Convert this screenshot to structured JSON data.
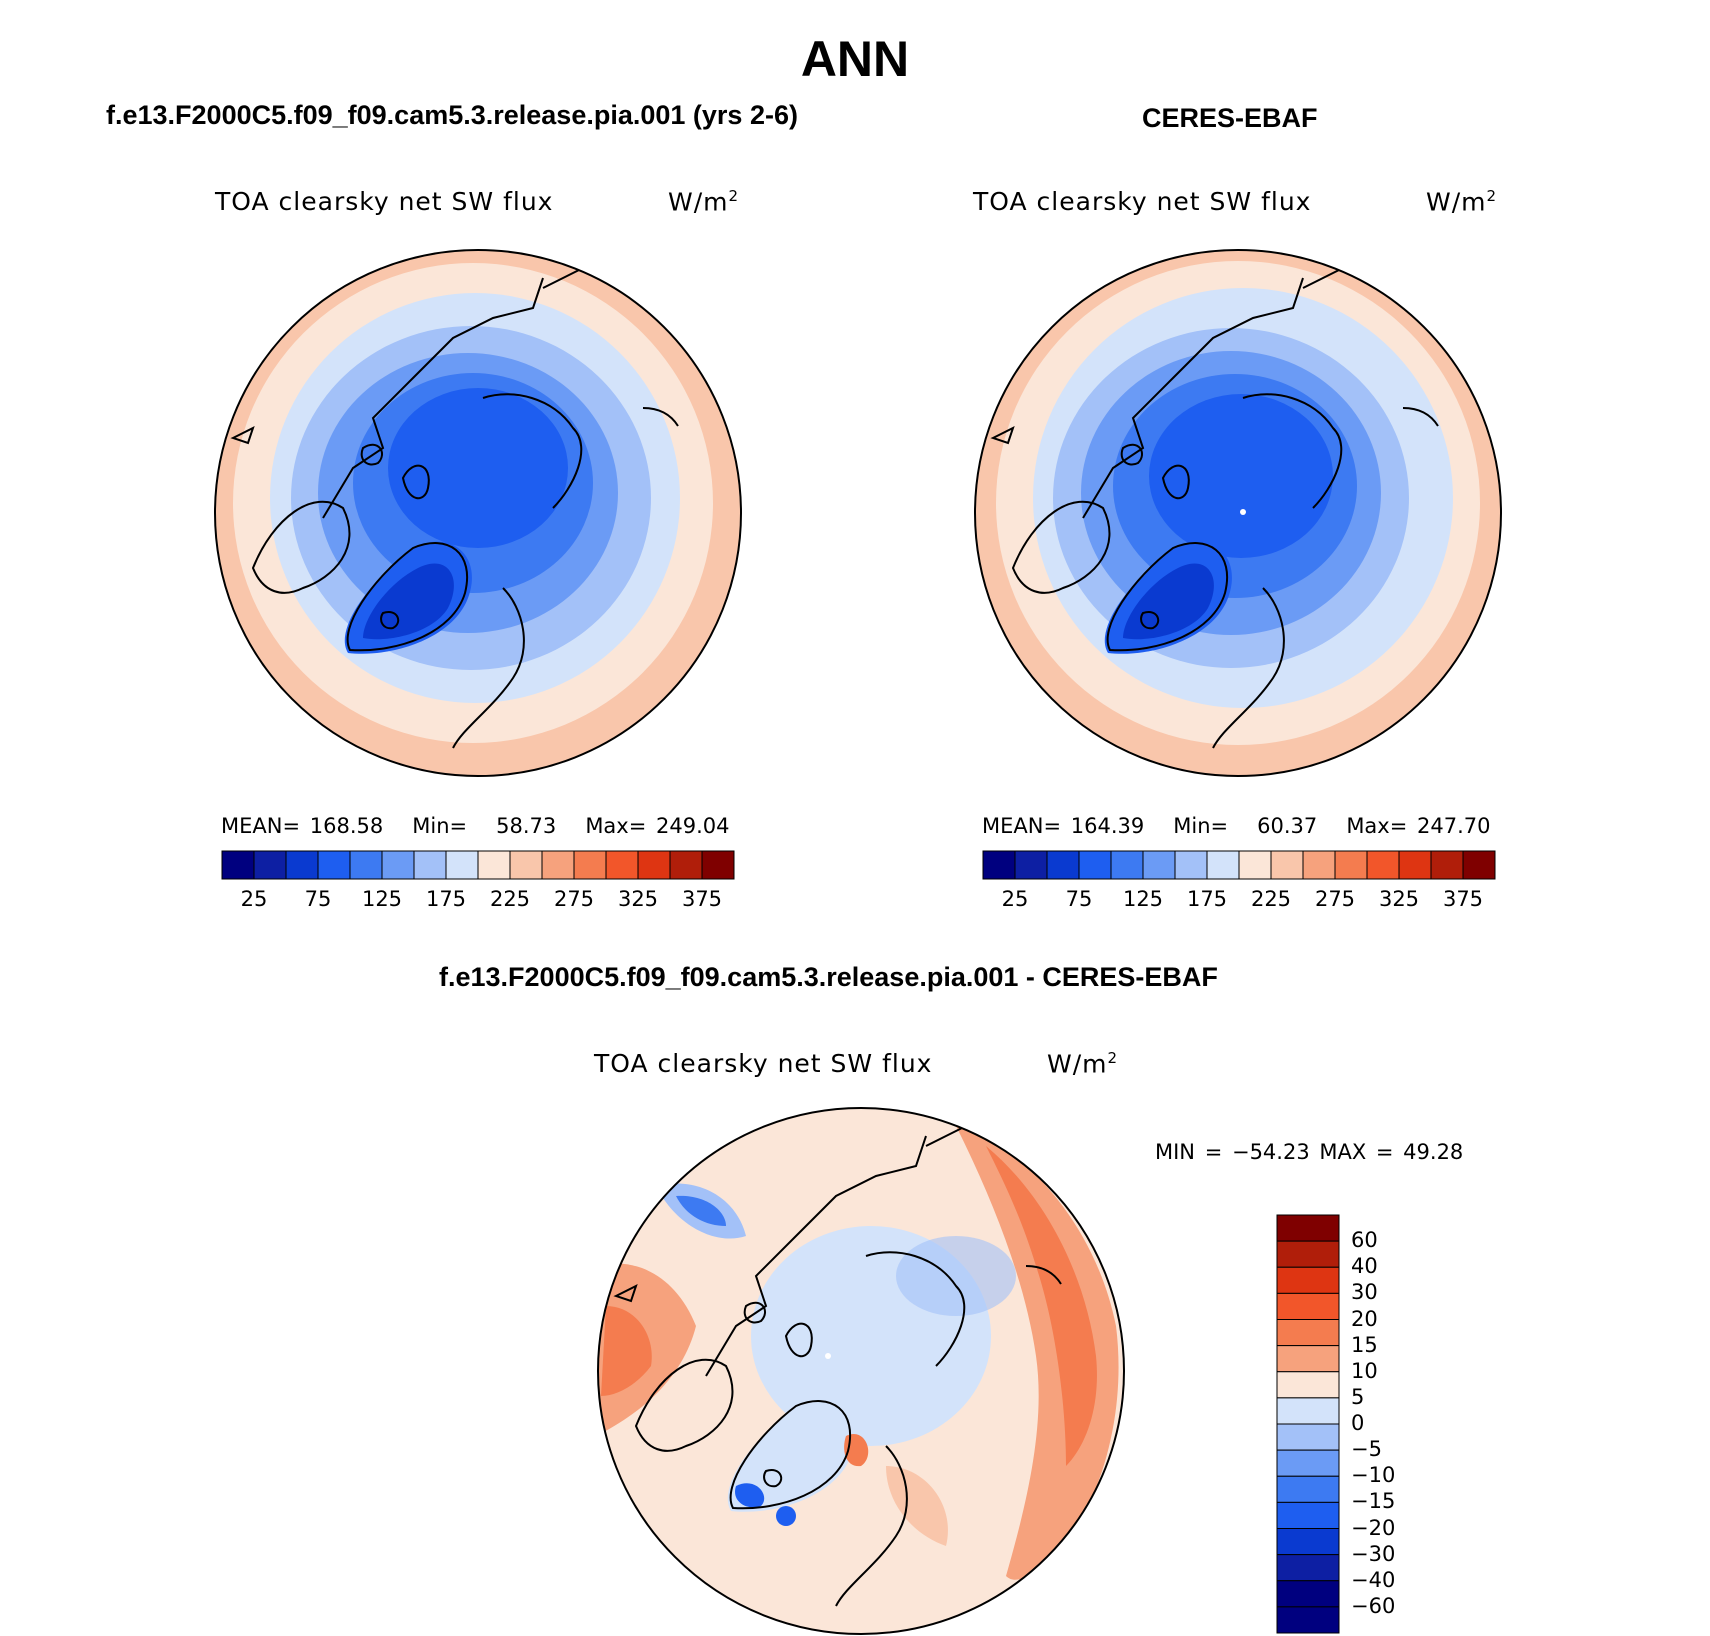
{
  "title": "ANN",
  "panels": {
    "model": {
      "heading": "f.e13.F2000C5.f09_f09.cam5.3.release.pia.001 (yrs 2-6)",
      "variable": "TOA clearsky net SW flux",
      "units_base": "W/m",
      "units_exp": "2",
      "stats": {
        "mean_label": "MEAN=",
        "mean": "168.58",
        "min_label": "Min=",
        "min": "58.73",
        "max_label": "Max=",
        "max": "249.04"
      }
    },
    "obs": {
      "heading": "CERES-EBAF",
      "variable": "TOA clearsky net SW flux",
      "units_base": "W/m",
      "units_exp": "2",
      "stats": {
        "mean_label": "MEAN=",
        "mean": "164.39",
        "min_label": "Min=",
        "min": "60.37",
        "max_label": "Max=",
        "max": "247.70"
      }
    },
    "diff": {
      "heading": "f.e13.F2000C5.f09_f09.cam5.3.release.pia.001 - CERES-EBAF",
      "variable": "TOA clearsky net SW flux",
      "units_base": "W/m",
      "units_exp": "2",
      "range_text": "MIN = −54.23 MAX =  49.28"
    }
  },
  "colorbar_main": {
    "ticks": [
      "25",
      "75",
      "125",
      "175",
      "225",
      "275",
      "325",
      "375"
    ],
    "colors": [
      "#00007f",
      "#0d1fa3",
      "#0a3ad0",
      "#1e5ef0",
      "#3d7af2",
      "#6b9bf5",
      "#a3c1f8",
      "#d3e3fa",
      "#fbe6d8",
      "#f9c6ab",
      "#f6a27d",
      "#f47c4f",
      "#f2562a",
      "#de3512",
      "#b01e0a",
      "#7f0000"
    ]
  },
  "colorbar_diff": {
    "ticks": [
      "60",
      "40",
      "30",
      "20",
      "15",
      "10",
      "5",
      "0",
      "−5",
      "−10",
      "−15",
      "−20",
      "−30",
      "−40",
      "−60"
    ],
    "colors": [
      "#7f0000",
      "#b01e0a",
      "#de3512",
      "#f2562a",
      "#f47c4f",
      "#f6a27d",
      "#fbe6d8",
      "#d3e3fa",
      "#a3c1f8",
      "#6b9bf5",
      "#3d7af2",
      "#1e5ef0",
      "#0a3ad0",
      "#0d1fa3",
      "#00007f",
      "#00007f"
    ]
  }
}
